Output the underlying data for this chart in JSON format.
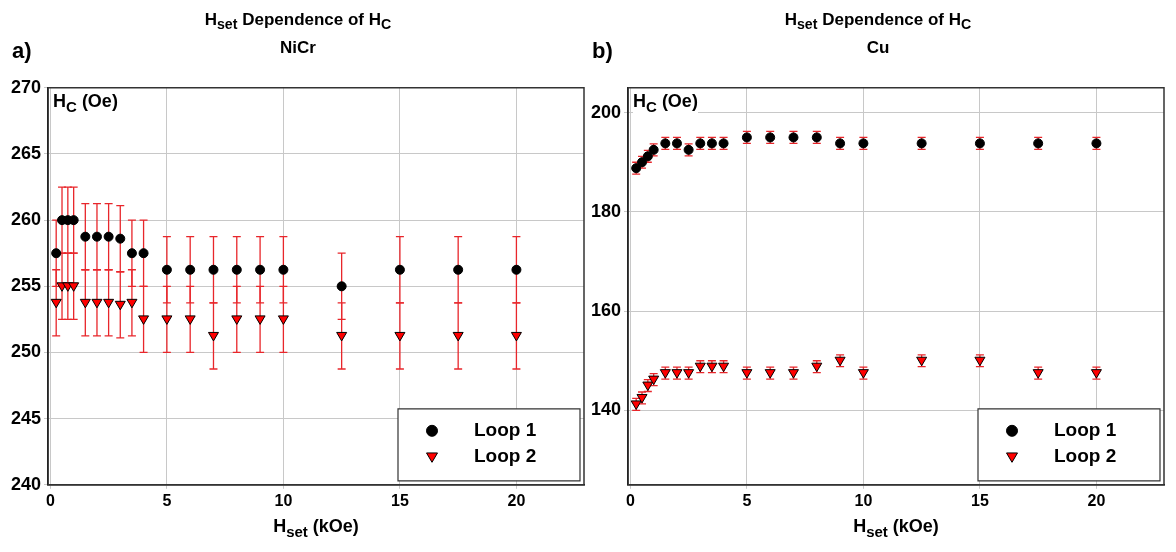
{
  "chart_data": [
    {
      "type": "scatter",
      "title": "H$_{set}$ Dependence of H$_{C}$",
      "subtitle": "NiCr",
      "xlabel": "H$_{set}$ (kOe)",
      "ylabel": "H$_{C}$ (Oe)",
      "annotations": [
        "a)"
      ],
      "x": [
        0.25,
        0.5,
        0.75,
        1,
        1.5,
        2,
        2.5,
        3,
        3.5,
        4,
        5,
        6,
        7,
        8,
        9,
        10,
        12.5,
        15,
        17.5,
        20
      ],
      "series": [
        {
          "name": "Loop 1",
          "color": "#000000",
          "marker": "circle",
          "values": [
            257.5,
            260,
            260,
            260,
            258.75,
            258.75,
            258.75,
            258.6,
            257.5,
            257.5,
            256.25,
            256.25,
            256.25,
            256.25,
            256.25,
            256.25,
            255,
            256.25,
            256.25,
            256.25
          ],
          "errors": [
            2.5,
            2.5,
            2.5,
            2.5,
            2.5,
            2.5,
            2.5,
            2.5,
            2.5,
            2.5,
            2.5,
            2.5,
            2.5,
            2.5,
            2.5,
            2.5,
            2.5,
            2.5,
            2.5,
            2.5
          ]
        },
        {
          "name": "Loop 2",
          "color": "#ff0000",
          "marker": "triangle",
          "values": [
            253.75,
            255,
            255,
            255,
            253.75,
            253.75,
            253.75,
            253.6,
            253.75,
            252.5,
            252.5,
            252.5,
            251.25,
            252.5,
            252.5,
            252.5,
            251.25,
            251.25,
            251.25,
            251.25
          ],
          "errors": [
            2.5,
            2.5,
            2.5,
            2.5,
            2.5,
            2.5,
            2.5,
            2.5,
            2.5,
            2.5,
            2.5,
            2.5,
            2.5,
            2.5,
            2.5,
            2.5,
            2.5,
            2.5,
            2.5,
            2.5
          ]
        }
      ],
      "xlim": [
        -0.1,
        22.9
      ],
      "xticks": [
        0,
        5,
        10,
        15,
        20
      ],
      "ylim": [
        240,
        270
      ],
      "yticks": [
        240,
        245,
        250,
        255,
        260,
        265,
        270
      ],
      "grid": true,
      "legend": "bottom right"
    },
    {
      "type": "scatter",
      "title": "H$_{set}$ Dependence of H$_{C}$",
      "subtitle": "Cu",
      "xlabel": "H$_{set}$ (kOe)",
      "ylabel": "H$_{C}$ (Oe)",
      "annotations": [
        "b)"
      ],
      "x": [
        0.25,
        0.5,
        0.75,
        1,
        1.5,
        2,
        2.5,
        3,
        3.5,
        4,
        5,
        6,
        7,
        8,
        9,
        10,
        12.5,
        15,
        17.5,
        20
      ],
      "series": [
        {
          "name": "Loop 1",
          "color": "#000000",
          "marker": "circle",
          "values": [
            188.8,
            190,
            191.2,
            192.5,
            193.8,
            193.8,
            192.5,
            193.8,
            193.8,
            193.8,
            195,
            195,
            195,
            195,
            193.8,
            193.8,
            193.8,
            193.8,
            193.8,
            193.8
          ],
          "errors": [
            1.2,
            1.2,
            1.2,
            1.2,
            1.2,
            1.2,
            1.2,
            1.2,
            1.2,
            1.2,
            1.2,
            1.2,
            1.2,
            1.2,
            1.2,
            1.2,
            1.2,
            1.2,
            1.2,
            1.2
          ]
        },
        {
          "name": "Loop 2",
          "color": "#ff0000",
          "marker": "triangle",
          "values": [
            141.2,
            142.5,
            145,
            146.2,
            147.5,
            147.5,
            147.5,
            148.8,
            148.8,
            148.8,
            147.5,
            147.5,
            147.5,
            148.8,
            150,
            147.5,
            150,
            150,
            147.5,
            147.5
          ],
          "errors": [
            1.2,
            1.2,
            1.2,
            1.2,
            1.2,
            1.2,
            1.2,
            1.2,
            1.2,
            1.2,
            1.2,
            1.2,
            1.2,
            1.2,
            1.2,
            1.2,
            1.2,
            1.2,
            1.2,
            1.2
          ]
        }
      ],
      "xlim": [
        -0.1,
        22.9
      ],
      "xticks": [
        0,
        5,
        10,
        15,
        20
      ],
      "ylim": [
        125,
        205
      ],
      "yticks": [
        140,
        160,
        180,
        200
      ],
      "grid": true,
      "legend": "bottom right"
    }
  ]
}
